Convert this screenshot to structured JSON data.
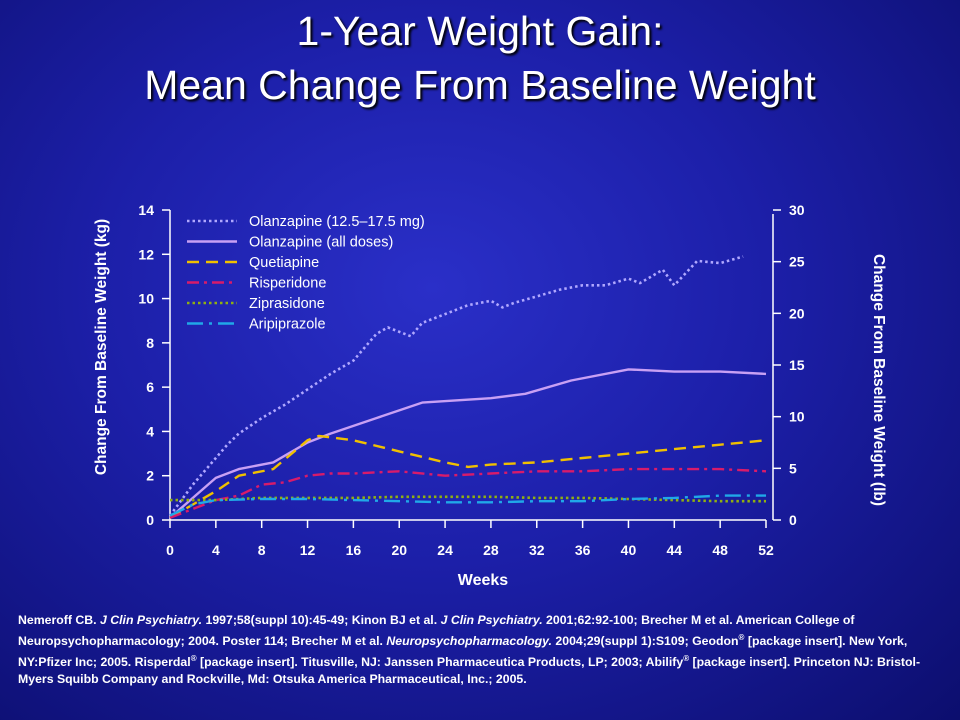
{
  "title_line1": "1-Year Weight Gain:",
  "title_line2": "Mean Change From Baseline Weight",
  "chart_data": {
    "type": "line",
    "xlabel": "Weeks",
    "ylabel_left": "Change From Baseline Weight (kg)",
    "ylabel_right": "Change From Baseline Weight (lb)",
    "xlim": [
      0,
      52
    ],
    "ylim_left": [
      0,
      14
    ],
    "ylim_right": [
      0,
      30
    ],
    "x_ticks": [
      0,
      4,
      8,
      12,
      16,
      20,
      24,
      28,
      32,
      36,
      40,
      44,
      48,
      52
    ],
    "y_ticks_left": [
      0,
      2,
      4,
      6,
      8,
      10,
      12,
      14
    ],
    "y_ticks_right": [
      0,
      5,
      10,
      15,
      20,
      25,
      30
    ],
    "legend_position": "top-left",
    "series": [
      {
        "name": "Olanzapine (12.5–17.5 mg)",
        "color": "#b0a8ff",
        "style": "dotted",
        "points": [
          [
            0,
            0.2
          ],
          [
            2,
            1.6
          ],
          [
            5,
            3.4
          ],
          [
            6,
            3.9
          ],
          [
            8,
            4.6
          ],
          [
            10,
            5.2
          ],
          [
            12,
            5.9
          ],
          [
            14,
            6.6
          ],
          [
            16,
            7.2
          ],
          [
            18,
            8.4
          ],
          [
            19,
            8.7
          ],
          [
            21,
            8.3
          ],
          [
            22,
            8.9
          ],
          [
            24,
            9.3
          ],
          [
            26,
            9.7
          ],
          [
            28,
            9.9
          ],
          [
            29,
            9.6
          ],
          [
            30,
            9.8
          ],
          [
            32,
            10.1
          ],
          [
            34,
            10.4
          ],
          [
            36,
            10.6
          ],
          [
            38,
            10.6
          ],
          [
            40,
            10.9
          ],
          [
            41,
            10.7
          ],
          [
            43,
            11.3
          ],
          [
            44,
            10.6
          ],
          [
            46,
            11.7
          ],
          [
            48,
            11.6
          ],
          [
            50,
            11.9
          ]
        ]
      },
      {
        "name": "Olanzapine (all doses)",
        "color": "#c8a0f4",
        "style": "solid",
        "points": [
          [
            0,
            0.1
          ],
          [
            4,
            1.9
          ],
          [
            6,
            2.3
          ],
          [
            9,
            2.6
          ],
          [
            12,
            3.5
          ],
          [
            14,
            3.9
          ],
          [
            18,
            4.6
          ],
          [
            22,
            5.3
          ],
          [
            28,
            5.5
          ],
          [
            31,
            5.7
          ],
          [
            35,
            6.3
          ],
          [
            40,
            6.8
          ],
          [
            44,
            6.7
          ],
          [
            48,
            6.7
          ],
          [
            52,
            6.6
          ]
        ]
      },
      {
        "name": "Quetiapine",
        "color": "#f0c000",
        "style": "dashed",
        "points": [
          [
            0,
            0.1
          ],
          [
            4,
            1.3
          ],
          [
            6,
            2.0
          ],
          [
            9,
            2.3
          ],
          [
            12,
            3.6
          ],
          [
            13,
            3.8
          ],
          [
            16,
            3.6
          ],
          [
            20,
            3.1
          ],
          [
            24,
            2.6
          ],
          [
            26,
            2.4
          ],
          [
            28,
            2.5
          ],
          [
            32,
            2.6
          ],
          [
            36,
            2.8
          ],
          [
            40,
            3.0
          ],
          [
            44,
            3.2
          ],
          [
            48,
            3.4
          ],
          [
            52,
            3.6
          ]
        ]
      },
      {
        "name": "Risperidone",
        "color": "#d81b6a",
        "style": "dash-dot",
        "points": [
          [
            0,
            0.1
          ],
          [
            4,
            0.9
          ],
          [
            6,
            1.1
          ],
          [
            8,
            1.6
          ],
          [
            10,
            1.7
          ],
          [
            12,
            2.0
          ],
          [
            14,
            2.1
          ],
          [
            16,
            2.1
          ],
          [
            20,
            2.2
          ],
          [
            24,
            2.0
          ],
          [
            28,
            2.1
          ],
          [
            32,
            2.2
          ],
          [
            36,
            2.2
          ],
          [
            40,
            2.3
          ],
          [
            44,
            2.3
          ],
          [
            48,
            2.3
          ],
          [
            52,
            2.2
          ]
        ]
      },
      {
        "name": "Ziprasidone",
        "color": "#90b010",
        "style": "dotted",
        "points": [
          [
            0,
            0.9
          ],
          [
            4,
            0.9
          ],
          [
            8,
            1.0
          ],
          [
            12,
            1.0
          ],
          [
            16,
            1.0
          ],
          [
            20,
            1.05
          ],
          [
            24,
            1.05
          ],
          [
            28,
            1.05
          ],
          [
            32,
            1.0
          ],
          [
            36,
            1.0
          ],
          [
            40,
            0.95
          ],
          [
            44,
            0.9
          ],
          [
            48,
            0.85
          ],
          [
            52,
            0.85
          ]
        ]
      },
      {
        "name": "Aripiprazole",
        "color": "#20a8e8",
        "style": "long-dash-dot",
        "points": [
          [
            0,
            0.2
          ],
          [
            2,
            0.7
          ],
          [
            4,
            0.9
          ],
          [
            8,
            0.95
          ],
          [
            12,
            0.95
          ],
          [
            16,
            0.9
          ],
          [
            20,
            0.85
          ],
          [
            24,
            0.8
          ],
          [
            28,
            0.8
          ],
          [
            32,
            0.85
          ],
          [
            36,
            0.85
          ],
          [
            40,
            0.95
          ],
          [
            44,
            1.0
          ],
          [
            48,
            1.1
          ],
          [
            52,
            1.1
          ]
        ]
      }
    ]
  },
  "references": {
    "r1_author": "Nemeroff CB. ",
    "r1_journal": "J Clin Psychiatry.",
    "r1_rest": " 1997;58(suppl 10):45-49;  Kinon BJ et al. ",
    "r2_journal": "J Clin Psychiatry.",
    "r2_rest": " 2001;62:92-100; Brecher M et al. American College of Neuropsychopharmacology; 2004. Poster 114;  Brecher M et al. ",
    "r3_journal": "Neuropsychopharmacology.",
    "r3_rest": " 2004;29(suppl 1):S109;  Geodon",
    "reg": "®",
    "r4_rest": " [package insert]. New York, NY:Pfizer Inc; 2005.  Risperdal",
    "r5_rest": " [package insert].  Titusville, NJ: Janssen Pharmaceutica Products, LP; 2003;  Abilify",
    "r6_rest": "  [package insert].  Princeton NJ: Bristol-Myers Squibb Company and Rockville, Md: Otsuka America Pharmaceutical, Inc.; 2005."
  }
}
